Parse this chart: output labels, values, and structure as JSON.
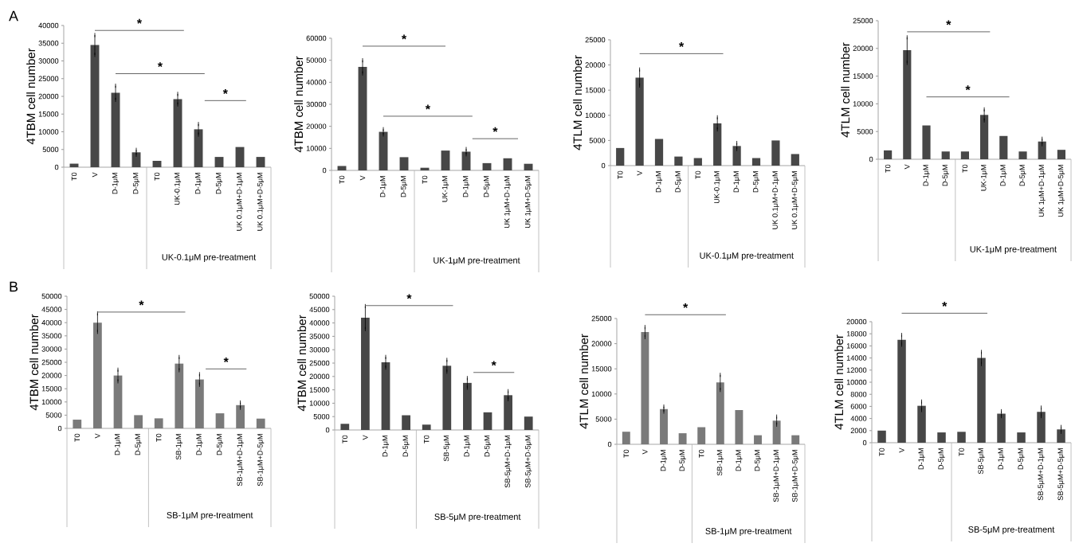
{
  "chart_data": [
    {
      "type": "bar",
      "title": "A",
      "ylabel": "4TBM cell number",
      "xlabel": "UK-0.1μM pre-treatment",
      "color": "#474747",
      "categories": [
        "T0",
        "V",
        "D-1μM",
        "D-5μM",
        "T0",
        "UK-0.1μM",
        "D-1μM",
        "D-5μM",
        "UK 0.1μM+D-1μM",
        "UK 0.1μM+D-5μM"
      ],
      "values": [
        1000,
        34500,
        21000,
        4200,
        1800,
        19200,
        10700,
        2900,
        5700,
        2900
      ],
      "errors": [
        null,
        2800,
        2000,
        700,
        null,
        1500,
        1500,
        null,
        null,
        null
      ],
      "ylim": [
        0,
        40000
      ],
      "yticks": [
        0,
        5000,
        10000,
        15000,
        20000,
        25000,
        30000,
        35000,
        40000
      ],
      "annotations": [
        "*",
        "*",
        "*"
      ]
    },
    {
      "type": "bar",
      "ylabel": "4TBM cell number",
      "xlabel": "UK-1μM pre-treatment",
      "color": "#474747",
      "categories": [
        "T0",
        "V",
        "D-1μM",
        "D-5μM",
        "T0",
        "UK-1μM",
        "D-1μM",
        "D-5μM",
        "UK 1μM+D-1μM",
        "UK 1μM+D-5μM"
      ],
      "values": [
        2000,
        47000,
        17500,
        6000,
        1200,
        9000,
        8500,
        3300,
        5500,
        3000
      ],
      "errors": [
        null,
        3000,
        1200,
        null,
        null,
        null,
        1200,
        null,
        null,
        null
      ],
      "ylim": [
        0,
        60000
      ],
      "yticks": [
        0,
        10000,
        20000,
        30000,
        40000,
        50000,
        60000
      ],
      "annotations": [
        "*",
        "*",
        "*"
      ]
    },
    {
      "type": "bar",
      "ylabel": "4TLM cell number",
      "xlabel": "UK-0.1μM pre-treatment",
      "color": "#474747",
      "categories": [
        "T0",
        "V",
        "D-1μM",
        "D-5μM",
        "T0",
        "UK-0.1μM",
        "D-1μM",
        "D-5μM",
        "UK 0.1μM+D-1μM",
        "UK 0.1μM+D-5μM"
      ],
      "values": [
        3500,
        17500,
        5300,
        1800,
        1500,
        8400,
        3900,
        1500,
        5000,
        2300
      ],
      "errors": [
        null,
        1600,
        null,
        null,
        null,
        1200,
        600,
        null,
        null,
        null
      ],
      "ylim": [
        0,
        25000
      ],
      "yticks": [
        0,
        5000,
        10000,
        15000,
        20000,
        25000
      ],
      "annotations": [
        "*"
      ]
    },
    {
      "type": "bar",
      "ylabel": "4TLM cell number",
      "xlabel": "UK-1μM pre-treatment",
      "color": "#474747",
      "categories": [
        "T0",
        "V",
        "D-1μM",
        "D-5μM",
        "T0",
        "UK-1μM",
        "D-1μM",
        "D-5μM",
        "UK 1μM+D-1μM",
        "UK 1μM+D-5μM"
      ],
      "values": [
        1600,
        19700,
        6100,
        1400,
        1400,
        8000,
        4200,
        1400,
        3200,
        1700
      ],
      "errors": [
        null,
        2300,
        null,
        null,
        null,
        1000,
        null,
        null,
        500,
        null
      ],
      "ylim": [
        0,
        25000
      ],
      "yticks": [
        0,
        5000,
        10000,
        15000,
        20000,
        25000
      ],
      "annotations": [
        "*",
        "*"
      ]
    },
    {
      "type": "bar",
      "title": "B",
      "ylabel": "4TBM cell number",
      "xlabel": "SB-1μM pre-treatment",
      "color": "#7a7a7a",
      "categories": [
        "T0",
        "V",
        "D-1μM",
        "D-5μM",
        "T0",
        "SB-1μM",
        "D-1μM",
        "D-5μM",
        "SB-1μM+D-1μM",
        "SB-1μM+D-5μM"
      ],
      "values": [
        3300,
        40000,
        20000,
        5000,
        3800,
        24500,
        18500,
        5700,
        8800,
        3700
      ],
      "errors": [
        null,
        3500,
        2200,
        null,
        null,
        2500,
        2000,
        null,
        1000,
        null
      ],
      "ylim": [
        0,
        50000
      ],
      "yticks": [
        0,
        5000,
        10000,
        15000,
        20000,
        25000,
        30000,
        35000,
        40000,
        45000,
        50000
      ],
      "annotations": [
        "*",
        "*"
      ]
    },
    {
      "type": "bar",
      "ylabel": "4TBM cell number",
      "xlabel": "SB-5μM pre-treatment",
      "color": "#474747",
      "categories": [
        "T0",
        "V",
        "D-1μM",
        "D-5μM",
        "T0",
        "SB-5μM",
        "D-1μM",
        "D-5μM",
        "SB-5μM+D-1μM",
        "SB-5μM+D-5μM"
      ],
      "values": [
        2300,
        42000,
        25300,
        5500,
        2000,
        24000,
        17600,
        6600,
        13000,
        5000
      ],
      "errors": [
        null,
        4300,
        2000,
        null,
        null,
        2200,
        1800,
        null,
        1500,
        null
      ],
      "ylim": [
        0,
        50000
      ],
      "yticks": [
        0,
        5000,
        10000,
        15000,
        20000,
        25000,
        30000,
        35000,
        40000,
        45000,
        50000
      ],
      "annotations": [
        "*",
        "*"
      ]
    },
    {
      "type": "bar",
      "ylabel": "4TLM cell number",
      "xlabel": "SB-1μM pre-treatment",
      "color": "#7a7a7a",
      "categories": [
        "T0",
        "V",
        "D-1μM",
        "D-5μM",
        "T0",
        "SB-1μM",
        "D-1μM",
        "D-5μM",
        "SB-1μM+D-1μM",
        "SB-1μM+D-5μM"
      ],
      "values": [
        2500,
        22300,
        7000,
        2200,
        3400,
        12300,
        6800,
        1800,
        4700,
        1800
      ],
      "errors": [
        null,
        1000,
        500,
        null,
        null,
        1500,
        null,
        null,
        800,
        null
      ],
      "ylim": [
        0,
        25000
      ],
      "yticks": [
        0,
        5000,
        10000,
        15000,
        20000,
        25000
      ],
      "annotations": [
        "*"
      ]
    },
    {
      "type": "bar",
      "ylabel": "4TLM cell number",
      "xlabel": "SB-5μM pre-treatment",
      "color": "#474747",
      "categories": [
        "T0",
        "V",
        "D-1μM",
        "D-5μM",
        "T0",
        "SB-5μM",
        "D-1μM",
        "D-5μM",
        "SB-5μM+D-1μM",
        "SB-5μM+D-5μM"
      ],
      "values": [
        2000,
        17000,
        6100,
        1700,
        1800,
        14000,
        4800,
        1700,
        5100,
        2200
      ],
      "errors": [
        null,
        800,
        700,
        null,
        null,
        1000,
        400,
        null,
        700,
        400
      ],
      "ylim": [
        0,
        20000
      ],
      "yticks": [
        0,
        2000,
        4000,
        6000,
        8000,
        10000,
        12000,
        14000,
        16000,
        18000,
        20000
      ],
      "annotations": [
        "*"
      ]
    }
  ]
}
